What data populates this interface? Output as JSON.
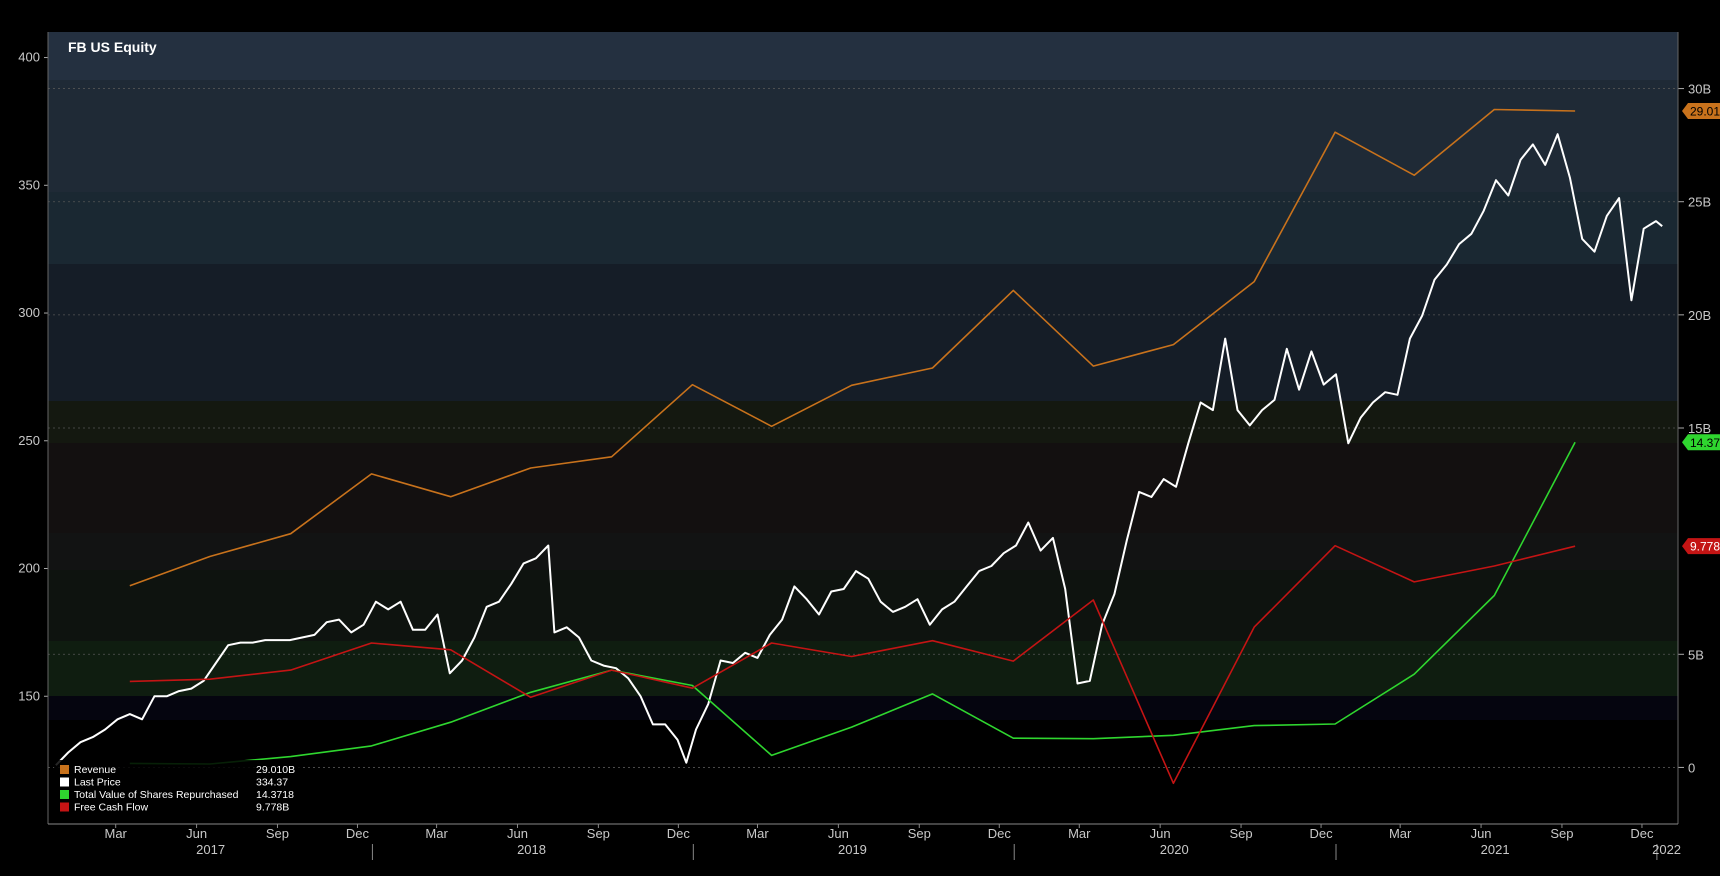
{
  "chart_data": {
    "type": "line",
    "title": "FB US Equity",
    "x_axis": {
      "start": "2016-12-28",
      "end": "2022-01-25",
      "month_ticks": [
        {
          "label": "Mar",
          "date": "2017-03-15"
        },
        {
          "label": "Jun",
          "date": "2017-06-15"
        },
        {
          "label": "Sep",
          "date": "2017-09-15"
        },
        {
          "label": "Dec",
          "date": "2017-12-15"
        },
        {
          "label": "Mar",
          "date": "2018-03-15"
        },
        {
          "label": "Jun",
          "date": "2018-06-15"
        },
        {
          "label": "Sep",
          "date": "2018-09-15"
        },
        {
          "label": "Dec",
          "date": "2018-12-15"
        },
        {
          "label": "Mar",
          "date": "2019-03-15"
        },
        {
          "label": "Jun",
          "date": "2019-06-15"
        },
        {
          "label": "Sep",
          "date": "2019-09-15"
        },
        {
          "label": "Dec",
          "date": "2019-12-15"
        },
        {
          "label": "Mar",
          "date": "2020-03-15"
        },
        {
          "label": "Jun",
          "date": "2020-06-15"
        },
        {
          "label": "Sep",
          "date": "2020-09-15"
        },
        {
          "label": "Dec",
          "date": "2020-12-15"
        },
        {
          "label": "Mar",
          "date": "2021-03-15"
        },
        {
          "label": "Jun",
          "date": "2021-06-15"
        },
        {
          "label": "Sep",
          "date": "2021-09-15"
        },
        {
          "label": "Dec",
          "date": "2021-12-15"
        }
      ],
      "year_labels": [
        {
          "label": "2017",
          "date": "2017-07-01"
        },
        {
          "label": "2018",
          "date": "2018-07-01"
        },
        {
          "label": "2019",
          "date": "2019-07-01"
        },
        {
          "label": "2020",
          "date": "2020-07-01"
        },
        {
          "label": "2021",
          "date": "2021-07-01"
        },
        {
          "label": "2022",
          "date": "2022-01-12"
        }
      ],
      "year_separators": [
        "2018-01-01",
        "2019-01-01",
        "2020-01-01",
        "2021-01-01",
        "2022-01-01"
      ]
    },
    "y_left": {
      "label": "",
      "range": [
        100,
        410
      ],
      "ticks": [
        150,
        200,
        250,
        300,
        350,
        400
      ]
    },
    "y_right": {
      "label": "",
      "range": [
        -2500000000,
        32500000000
      ],
      "ticks": [
        {
          "value": 0,
          "label": "0"
        },
        {
          "value": 5000000000,
          "label": "5B"
        },
        {
          "value": 15000000000,
          "label": "15B"
        },
        {
          "value": 20000000000,
          "label": "20B"
        },
        {
          "value": 25000000000,
          "label": "25B"
        },
        {
          "value": 30000000000,
          "label": "30B"
        }
      ]
    },
    "series": [
      {
        "name": "Revenue",
        "color": "#c8721c",
        "axis": "right",
        "legend_value": "29.010B",
        "last_label": "29.01",
        "x": [
          "2017-03-31",
          "2017-06-30",
          "2017-09-30",
          "2017-12-31",
          "2018-03-31",
          "2018-06-30",
          "2018-09-30",
          "2018-12-31",
          "2019-03-31",
          "2019-06-30",
          "2019-09-30",
          "2019-12-31",
          "2020-03-31",
          "2020-06-30",
          "2020-09-30",
          "2020-12-31",
          "2021-03-31",
          "2021-06-30",
          "2021-09-30"
        ],
        "values": [
          8032000000,
          9321000000,
          10328000000,
          12972000000,
          11966000000,
          13231000000,
          13727000000,
          16914000000,
          15077000000,
          16886000000,
          17652000000,
          21082000000,
          17737000000,
          18687000000,
          21470000000,
          28072000000,
          26171000000,
          29077000000,
          29010000000
        ]
      },
      {
        "name": "Last Price",
        "color": "#ffffff",
        "axis": "left",
        "legend_value": "334.37",
        "x": [
          "2017-01-06",
          "2017-01-20",
          "2017-02-03",
          "2017-02-17",
          "2017-03-03",
          "2017-03-17",
          "2017-03-31",
          "2017-04-14",
          "2017-04-28",
          "2017-05-12",
          "2017-05-26",
          "2017-06-09",
          "2017-06-23",
          "2017-07-07",
          "2017-07-21",
          "2017-08-04",
          "2017-08-18",
          "2017-09-01",
          "2017-09-15",
          "2017-09-29",
          "2017-10-13",
          "2017-10-27",
          "2017-11-10",
          "2017-11-24",
          "2017-12-08",
          "2017-12-22",
          "2018-01-05",
          "2018-01-19",
          "2018-02-02",
          "2018-02-16",
          "2018-03-02",
          "2018-03-16",
          "2018-03-30",
          "2018-04-13",
          "2018-04-27",
          "2018-05-11",
          "2018-05-25",
          "2018-06-08",
          "2018-06-22",
          "2018-07-06",
          "2018-07-20",
          "2018-07-27",
          "2018-08-10",
          "2018-08-24",
          "2018-09-07",
          "2018-09-21",
          "2018-10-05",
          "2018-10-19",
          "2018-11-02",
          "2018-11-16",
          "2018-11-30",
          "2018-12-14",
          "2018-12-24",
          "2019-01-04",
          "2019-01-18",
          "2019-02-01",
          "2019-02-15",
          "2019-03-01",
          "2019-03-15",
          "2019-03-29",
          "2019-04-12",
          "2019-04-26",
          "2019-05-10",
          "2019-05-24",
          "2019-06-07",
          "2019-06-21",
          "2019-07-05",
          "2019-07-19",
          "2019-08-02",
          "2019-08-16",
          "2019-08-30",
          "2019-09-13",
          "2019-09-27",
          "2019-10-11",
          "2019-10-25",
          "2019-11-08",
          "2019-11-22",
          "2019-12-06",
          "2019-12-20",
          "2020-01-03",
          "2020-01-17",
          "2020-01-31",
          "2020-02-14",
          "2020-02-28",
          "2020-03-13",
          "2020-03-27",
          "2020-04-10",
          "2020-04-24",
          "2020-05-08",
          "2020-05-22",
          "2020-06-05",
          "2020-06-19",
          "2020-07-03",
          "2020-07-17",
          "2020-07-31",
          "2020-08-14",
          "2020-08-28",
          "2020-09-11",
          "2020-09-25",
          "2020-10-09",
          "2020-10-23",
          "2020-11-06",
          "2020-11-20",
          "2020-12-04",
          "2020-12-18",
          "2021-01-01",
          "2021-01-15",
          "2021-01-29",
          "2021-02-12",
          "2021-02-26",
          "2021-03-12",
          "2021-03-26",
          "2021-04-09",
          "2021-04-23",
          "2021-05-07",
          "2021-05-21",
          "2021-06-04",
          "2021-06-18",
          "2021-07-02",
          "2021-07-16",
          "2021-07-30",
          "2021-08-13",
          "2021-08-27",
          "2021-09-10",
          "2021-09-24",
          "2021-10-08",
          "2021-10-22",
          "2021-11-05",
          "2021-11-19",
          "2021-12-03",
          "2021-12-17",
          "2021-12-31",
          "2022-01-07"
        ],
        "values": [
          123,
          128,
          132,
          134,
          137,
          141,
          143,
          141,
          150,
          150,
          152,
          153,
          156,
          163,
          170,
          171,
          171,
          172,
          172,
          172,
          173,
          174,
          179,
          180,
          175,
          178,
          187,
          184,
          187,
          176,
          176,
          182,
          159,
          164,
          173,
          185,
          187,
          194,
          202,
          204,
          209,
          175,
          177,
          173,
          164,
          162,
          161,
          157,
          150,
          139,
          139,
          133,
          124,
          137,
          147,
          164,
          163,
          167,
          165,
          174,
          180,
          193,
          188,
          182,
          191,
          192,
          199,
          196,
          187,
          183,
          185,
          188,
          178,
          184,
          187,
          193,
          199,
          201,
          206,
          209,
          218,
          207,
          212,
          192,
          155,
          156,
          178,
          190,
          211,
          230,
          228,
          235,
          232,
          249,
          265,
          262,
          290,
          262,
          256,
          262,
          266,
          286,
          270,
          285,
          272,
          276,
          249,
          259,
          265,
          269,
          268,
          290,
          299,
          313,
          319,
          327,
          331,
          340,
          352,
          346,
          360,
          366,
          358,
          370,
          353,
          329,
          324,
          338,
          345,
          305,
          333,
          336,
          334
        ]
      },
      {
        "name": "Total Value of Shares Repurchased",
        "color": "#2fd62f",
        "axis": "right",
        "legend_value": "14.3718",
        "last_label": "14.37",
        "x": [
          "2017-03-31",
          "2017-06-30",
          "2017-09-30",
          "2017-12-31",
          "2018-03-31",
          "2018-06-30",
          "2018-09-30",
          "2018-12-31",
          "2019-03-31",
          "2019-06-30",
          "2019-09-30",
          "2019-12-31",
          "2020-03-31",
          "2020-06-30",
          "2020-09-30",
          "2020-12-31",
          "2021-03-31",
          "2021-06-30",
          "2021-09-30"
        ],
        "values": [
          180000000,
          150000000,
          480000000,
          950000000,
          2000000000,
          3320000000,
          4300000000,
          3620000000,
          530000000,
          1780000000,
          3250000000,
          1290000000,
          1270000000,
          1420000000,
          1850000000,
          1920000000,
          4120000000,
          7600000000,
          14370000000
        ]
      },
      {
        "name": "Free Cash Flow",
        "color": "#c41414",
        "axis": "right",
        "legend_value": "9.778B",
        "last_label": "9.778",
        "x": [
          "2017-03-31",
          "2017-06-30",
          "2017-09-30",
          "2017-12-31",
          "2018-03-31",
          "2018-06-30",
          "2018-09-30",
          "2018-12-31",
          "2019-03-31",
          "2019-06-30",
          "2019-09-30",
          "2019-12-31",
          "2020-03-31",
          "2020-06-30",
          "2020-09-30",
          "2020-12-31",
          "2021-03-31",
          "2021-06-30",
          "2021-09-30"
        ],
        "values": [
          3800000000,
          3900000000,
          4300000000,
          5500000000,
          5200000000,
          3100000000,
          4300000000,
          3500000000,
          5500000000,
          4900000000,
          5600000000,
          4700000000,
          7400000000,
          -700000000,
          6200000000,
          9800000000,
          8200000000,
          8900000000,
          9778000000
        ]
      }
    ]
  }
}
